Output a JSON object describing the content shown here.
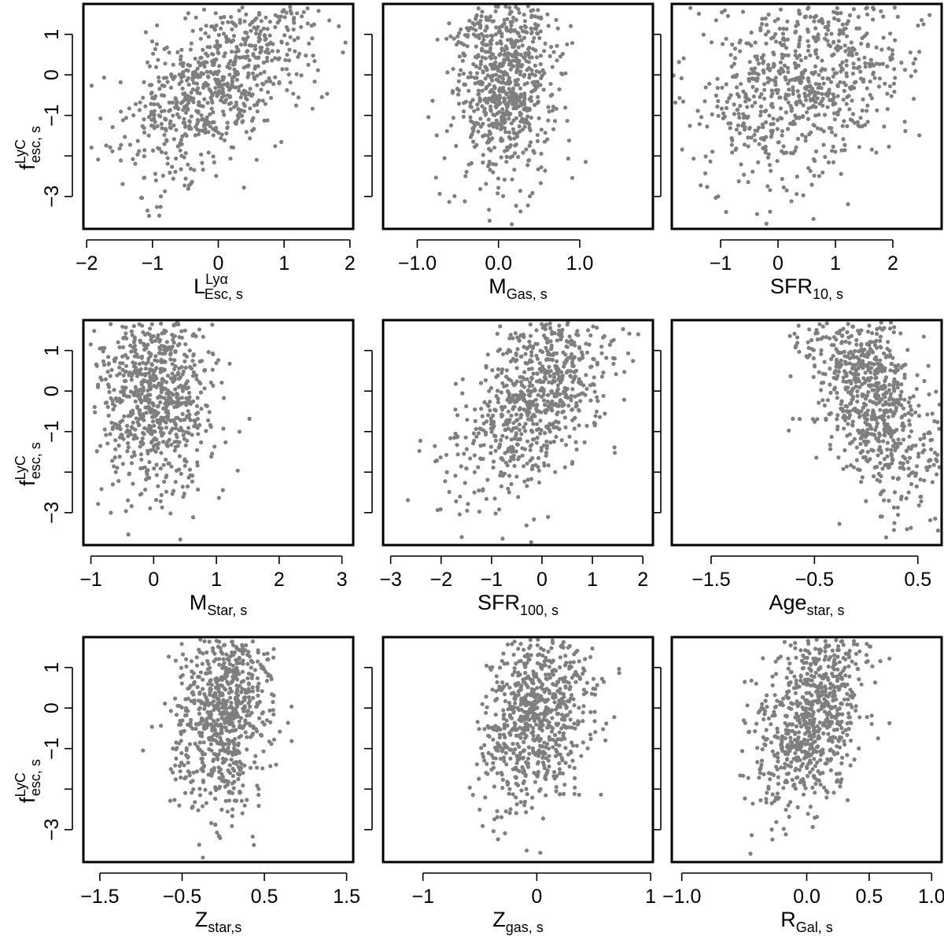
{
  "figure": {
    "background": "#ffffff",
    "point_color": "#7f7f7f",
    "frame_color": "#000000"
  },
  "y_label": {
    "main": "f",
    "sup": "LyC",
    "sub": "esc, s"
  },
  "chart_data": [
    {
      "type": "scatter",
      "xlabel": {
        "main": "L",
        "sup": "Lyα",
        "sub": "Esc, s"
      },
      "xlim": [
        -2.05,
        2.05
      ],
      "ylim": [
        -3.8,
        1.75
      ],
      "xticks": [
        -2,
        -1,
        0,
        1,
        2
      ],
      "xtick_labels": [
        "−2",
        "−1",
        "0",
        "1",
        "2"
      ],
      "yticks": [
        -3,
        -2,
        -1,
        0,
        1
      ],
      "ytick_labels": [
        "−3",
        "",
        "−1",
        "0",
        "1"
      ],
      "model": {
        "n": 720,
        "xmean": 0.0,
        "xsd": 0.72,
        "ymean": -0.1,
        "ysd": 1.15,
        "slope": 0.6,
        "noise": 0.85,
        "seed": 11
      }
    },
    {
      "type": "scatter",
      "xlabel": {
        "main": "M",
        "sup": "",
        "sub": "Gas, s"
      },
      "xlim": [
        -1.42,
        1.9
      ],
      "ylim": [
        -3.8,
        1.75
      ],
      "xticks": [
        -1.0,
        0.0,
        1.0
      ],
      "xtick_labels": [
        "−1.0",
        "0.0",
        "1.0"
      ],
      "yticks": [
        -3,
        -2,
        -1,
        0,
        1
      ],
      "ytick_labels": [
        "",
        "",
        "",
        "",
        ""
      ],
      "model": {
        "n": 720,
        "xmean": 0.05,
        "xsd": 0.3,
        "ymean": -0.1,
        "ysd": 1.15,
        "slope": 0.0,
        "noise": 1.1,
        "seed": 23
      }
    },
    {
      "type": "scatter",
      "xlabel": {
        "main": "SFR",
        "sup": "",
        "sub": "10, s"
      },
      "xlim": [
        -1.85,
        2.85
      ],
      "ylim": [
        -3.8,
        1.75
      ],
      "xticks": [
        -1,
        0,
        1,
        2
      ],
      "xtick_labels": [
        "−1",
        "0",
        "1",
        "2"
      ],
      "yticks": [
        -3,
        -2,
        -1,
        0,
        1
      ],
      "ytick_labels": [
        "",
        "",
        "",
        "",
        ""
      ],
      "model": {
        "n": 720,
        "xmean": 0.4,
        "xsd": 0.9,
        "ymean": -0.1,
        "ysd": 1.15,
        "slope": 0.3,
        "noise": 1.05,
        "seed": 37
      }
    },
    {
      "type": "scatter",
      "xlabel": {
        "main": "M",
        "sup": "",
        "sub": "Star, s"
      },
      "xlim": [
        -1.12,
        3.18
      ],
      "ylim": [
        -3.8,
        1.75
      ],
      "xticks": [
        -1,
        0,
        1,
        2,
        3
      ],
      "xtick_labels": [
        "−1",
        "0",
        "1",
        "2",
        "3"
      ],
      "yticks": [
        -3,
        -2,
        -1,
        0,
        1
      ],
      "ytick_labels": [
        "−3",
        "",
        "−1",
        "0",
        "1"
      ],
      "model": {
        "n": 720,
        "xmean": 0.05,
        "xsd": 0.45,
        "ymean": -0.1,
        "ysd": 1.15,
        "slope": 0.0,
        "noise": 1.1,
        "seed": 41
      }
    },
    {
      "type": "scatter",
      "xlabel": {
        "main": "SFR",
        "sup": "",
        "sub": "100, s"
      },
      "xlim": [
        -3.15,
        2.2
      ],
      "ylim": [
        -3.8,
        1.75
      ],
      "xticks": [
        -3,
        -2,
        -1,
        0,
        1,
        2
      ],
      "xtick_labels": [
        "−3",
        "−2",
        "−1",
        "0",
        "1",
        "2"
      ],
      "yticks": [
        -3,
        -2,
        -1,
        0,
        1
      ],
      "ytick_labels": [
        "",
        "",
        "",
        "",
        ""
      ],
      "model": {
        "n": 720,
        "xmean": -0.1,
        "xsd": 0.75,
        "ymean": -0.1,
        "ysd": 1.15,
        "slope": 0.55,
        "noise": 0.9,
        "seed": 53
      }
    },
    {
      "type": "scatter",
      "xlabel": {
        "main": "Age",
        "sup": "",
        "sub": "star, s"
      },
      "xlim": [
        -1.88,
        0.73
      ],
      "ylim": [
        -3.8,
        1.75
      ],
      "xticks": [
        -1.5,
        -0.5,
        0.5
      ],
      "xtick_labels": [
        "−1.5",
        "−0.5",
        "0.5"
      ],
      "yticks": [
        -3,
        -2,
        -1,
        0,
        1
      ],
      "ytick_labels": [
        "",
        "",
        "",
        "",
        ""
      ],
      "model": {
        "n": 720,
        "xmean": 0.05,
        "xsd": 0.32,
        "ymean": -0.1,
        "ysd": 1.15,
        "slope": -0.55,
        "noise": 0.9,
        "seed": 67
      }
    },
    {
      "type": "scatter",
      "xlabel": {
        "main": "Z",
        "sup": "",
        "sub": "star,s"
      },
      "xlim": [
        -1.7,
        1.58
      ],
      "ylim": [
        -3.8,
        1.75
      ],
      "xticks": [
        -1.5,
        -0.5,
        0.5,
        1.5
      ],
      "xtick_labels": [
        "−1.5",
        "−0.5",
        "0.5",
        "1.5"
      ],
      "yticks": [
        -3,
        -2,
        -1,
        0,
        1
      ],
      "ytick_labels": [
        "−3",
        "",
        "−1",
        "0",
        "1"
      ],
      "model": {
        "n": 720,
        "xmean": 0.0,
        "xsd": 0.3,
        "ymean": -0.1,
        "ysd": 1.15,
        "slope": 0.15,
        "noise": 1.05,
        "seed": 79
      }
    },
    {
      "type": "scatter",
      "xlabel": {
        "main": "Z",
        "sup": "",
        "sub": "gas, s"
      },
      "xlim": [
        -1.35,
        1.02
      ],
      "ylim": [
        -3.8,
        1.75
      ],
      "xticks": [
        -1,
        0,
        1
      ],
      "xtick_labels": [
        "−1",
        "0",
        "1"
      ],
      "yticks": [
        -3,
        -2,
        -1,
        0,
        1
      ],
      "ytick_labels": [
        "",
        "",
        "",
        "",
        ""
      ],
      "model": {
        "n": 720,
        "xmean": 0.0,
        "xsd": 0.25,
        "ymean": -0.1,
        "ysd": 1.15,
        "slope": 0.3,
        "noise": 1.0,
        "seed": 83
      }
    },
    {
      "type": "scatter",
      "xlabel": {
        "main": "R",
        "sup": "",
        "sub": "Gal, s"
      },
      "xlim": [
        -1.08,
        1.08
      ],
      "ylim": [
        -3.8,
        1.75
      ],
      "xticks": [
        -1.0,
        0.0,
        0.5,
        1.0
      ],
      "xtick_labels": [
        "−1.0",
        "0.0",
        "0.5",
        "1.0"
      ],
      "yticks": [
        -3,
        -2,
        -1,
        0,
        1
      ],
      "ytick_labels": [
        "",
        "",
        "",
        "",
        ""
      ],
      "model": {
        "n": 720,
        "xmean": 0.05,
        "xsd": 0.22,
        "ymean": -0.1,
        "ysd": 1.15,
        "slope": 0.35,
        "noise": 1.0,
        "seed": 97
      }
    }
  ]
}
